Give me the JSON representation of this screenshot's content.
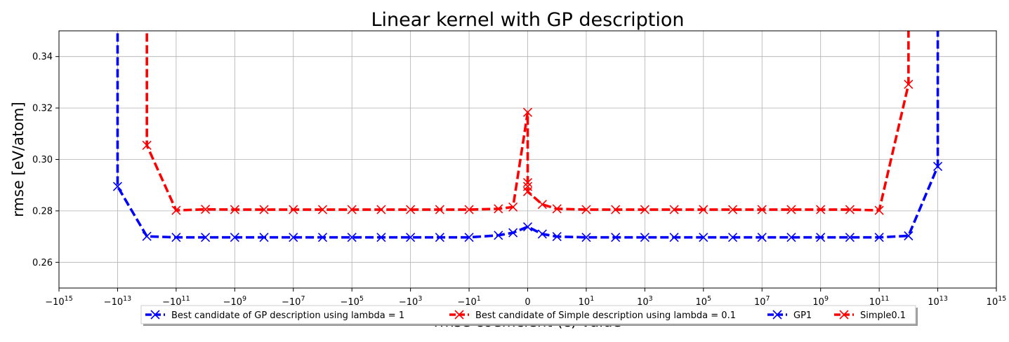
{
  "chart_data": {
    "type": "line",
    "title": "Linear kernel with GP description",
    "xlabel": "rmse coefficient (c) value",
    "ylabel": "rmse [eV/atom]",
    "xscale": "symlog",
    "ylim": [
      0.25,
      0.35
    ],
    "grid": true,
    "legend_position": "bottom-center",
    "x_ticks": [
      {
        "value": -1000000000000000.0,
        "label": "−10",
        "exp": "15"
      },
      {
        "value": -10000000000000.0,
        "label": "−10",
        "exp": "13"
      },
      {
        "value": -100000000000.0,
        "label": "−10",
        "exp": "11"
      },
      {
        "value": -1000000000.0,
        "label": "−10",
        "exp": "9"
      },
      {
        "value": -10000000.0,
        "label": "−10",
        "exp": "7"
      },
      {
        "value": -100000.0,
        "label": "−10",
        "exp": "5"
      },
      {
        "value": -1000.0,
        "label": "−10",
        "exp": "3"
      },
      {
        "value": -10,
        "label": "−10",
        "exp": "1"
      },
      {
        "value": 0,
        "label": "0",
        "exp": ""
      },
      {
        "value": 10,
        "label": "10",
        "exp": "1"
      },
      {
        "value": 1000.0,
        "label": "10",
        "exp": "3"
      },
      {
        "value": 100000.0,
        "label": "10",
        "exp": "5"
      },
      {
        "value": 10000000.0,
        "label": "10",
        "exp": "7"
      },
      {
        "value": 1000000000.0,
        "label": "10",
        "exp": "9"
      },
      {
        "value": 100000000000.0,
        "label": "10",
        "exp": "11"
      },
      {
        "value": 10000000000000.0,
        "label": "10",
        "exp": "13"
      },
      {
        "value": 1000000000000000.0,
        "label": "10",
        "exp": "15"
      }
    ],
    "y_ticks": [
      {
        "value": 0.26,
        "label": "0.26"
      },
      {
        "value": 0.28,
        "label": "0.28"
      },
      {
        "value": 0.3,
        "label": "0.30"
      },
      {
        "value": 0.32,
        "label": "0.32"
      },
      {
        "value": 0.34,
        "label": "0.34"
      }
    ],
    "series": [
      {
        "name": "Best candidate of GP description using lambda = 1",
        "color": "#0000ff",
        "points": [
          [
            -10000000000000.0,
            0.4
          ],
          [
            -10000000000000.0,
            0.2895
          ],
          [
            -1000000000000.0,
            0.2701
          ],
          [
            -100000000000.0,
            0.2697
          ],
          [
            -10000000000.0,
            0.2697
          ],
          [
            -1000000000.0,
            0.2697
          ],
          [
            -100000000.0,
            0.2697
          ],
          [
            -10000000.0,
            0.2697
          ],
          [
            -1000000.0,
            0.2697
          ],
          [
            -100000.0,
            0.2697
          ],
          [
            -10000.0,
            0.2697
          ],
          [
            -1000.0,
            0.2697
          ],
          [
            -100,
            0.2697
          ],
          [
            -10,
            0.2697
          ],
          [
            -1,
            0.2705
          ],
          [
            -0.5,
            0.2715
          ],
          [
            0,
            0.2738
          ],
          [
            0.5,
            0.271
          ],
          [
            1,
            0.27
          ],
          [
            10,
            0.2697
          ],
          [
            100,
            0.2697
          ],
          [
            1000.0,
            0.2697
          ],
          [
            10000.0,
            0.2697
          ],
          [
            100000.0,
            0.2697
          ],
          [
            1000000.0,
            0.2697
          ],
          [
            10000000.0,
            0.2697
          ],
          [
            100000000.0,
            0.2697
          ],
          [
            1000000000.0,
            0.2697
          ],
          [
            10000000000.0,
            0.2697
          ],
          [
            100000000000.0,
            0.2697
          ],
          [
            1000000000000.0,
            0.2703
          ],
          [
            10000000000000.0,
            0.2973
          ],
          [
            10000000000000.0,
            0.4
          ]
        ]
      },
      {
        "name": "Best candidate of Simple description using lambda = 0.1",
        "color": "#ff0000",
        "points": [
          [
            -1000000000000.0,
            0.4
          ],
          [
            -1000000000000.0,
            0.3055
          ],
          [
            -100000000000.0,
            0.2802
          ],
          [
            -10000000000.0,
            0.2806
          ],
          [
            -1000000000.0,
            0.2805
          ],
          [
            -100000000.0,
            0.2805
          ],
          [
            -10000000.0,
            0.2805
          ],
          [
            -1000000.0,
            0.2805
          ],
          [
            -100000.0,
            0.2805
          ],
          [
            -10000.0,
            0.2805
          ],
          [
            -1000.0,
            0.2805
          ],
          [
            -100,
            0.2805
          ],
          [
            -10,
            0.2805
          ],
          [
            -1,
            0.2808
          ],
          [
            -0.5,
            0.2815
          ],
          [
            0,
            0.3183
          ],
          [
            0,
            0.291
          ],
          [
            0,
            0.2895
          ],
          [
            0,
            0.2875
          ],
          [
            0.5,
            0.2825
          ],
          [
            1,
            0.2808
          ],
          [
            10,
            0.2805
          ],
          [
            100,
            0.2805
          ],
          [
            1000.0,
            0.2805
          ],
          [
            10000.0,
            0.2805
          ],
          [
            100000.0,
            0.2805
          ],
          [
            1000000.0,
            0.2805
          ],
          [
            10000000.0,
            0.2805
          ],
          [
            100000000.0,
            0.2805
          ],
          [
            1000000000.0,
            0.2805
          ],
          [
            10000000000.0,
            0.2805
          ],
          [
            100000000000.0,
            0.2802
          ],
          [
            1000000000000.0,
            0.3292
          ],
          [
            1000000000000.0,
            0.4
          ]
        ]
      }
    ],
    "legend": [
      {
        "label": "Best candidate of GP description using lambda = 1",
        "color": "#0000ff"
      },
      {
        "label": "Best candidate of Simple description using lambda = 0.1",
        "color": "#ff0000"
      },
      {
        "label": "GP1",
        "color": "#0000ff"
      },
      {
        "label": "Simple0.1",
        "color": "#ff0000"
      }
    ]
  }
}
